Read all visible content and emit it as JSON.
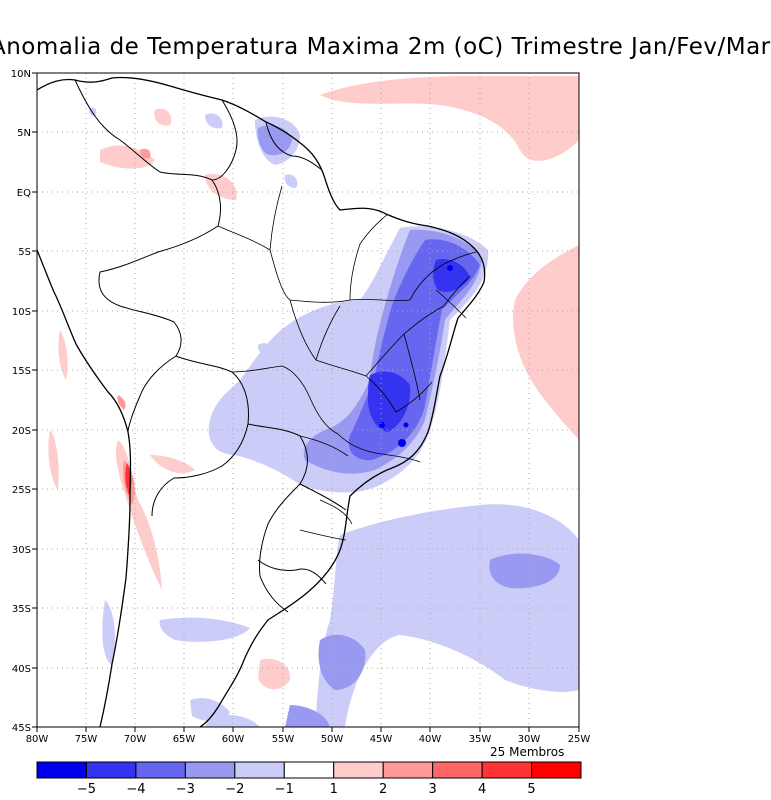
{
  "title": "Anomalia de Temperatura Maxima 2m (oC) Trimestre Jan/Fev/Mar",
  "lon_ticks": [
    "80W",
    "75W",
    "70W",
    "65W",
    "60W",
    "55W",
    "50W",
    "45W",
    "40W",
    "35W",
    "30W",
    "25W"
  ],
  "lat_ticks": [
    "10N",
    "5N",
    "EQ",
    "5S",
    "10S",
    "15S",
    "20S",
    "25S",
    "30S",
    "35S",
    "40S",
    "45S"
  ],
  "members_note": "25 Membros",
  "legend": {
    "labels": [
      "-5",
      "-4",
      "-3",
      "-2",
      "-1",
      "1",
      "2",
      "3",
      "4",
      "5"
    ],
    "colors": [
      "#0000f0",
      "#3333f0",
      "#6666f0",
      "#9999f2",
      "#ccccf8",
      "#ffffff",
      "#ffcccc",
      "#ff9999",
      "#ff6666",
      "#ff3333",
      "#ff0000"
    ]
  }
}
